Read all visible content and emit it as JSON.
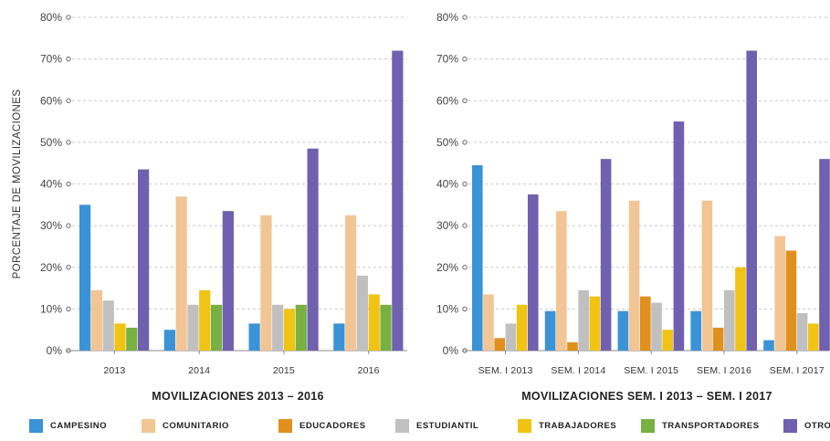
{
  "chart_data": [
    {
      "type": "bar",
      "title": "",
      "xlabel": "MOVILIZACIONES 2013 – 2016",
      "ylabel": "PORCENTAJE DE MOVILIZACIONES",
      "ylim": [
        0,
        80
      ],
      "yticks": [
        "0%",
        "10%",
        "20%",
        "30%",
        "40%",
        "50%",
        "60%",
        "70%",
        "80%"
      ],
      "grid": true,
      "categories": [
        "2013",
        "2014",
        "2015",
        "2016"
      ],
      "series": [
        {
          "name": "CAMPESINO",
          "values": [
            35,
            5,
            6.5,
            6.5
          ]
        },
        {
          "name": "COMUNITARIO",
          "values": [
            14.5,
            37,
            32.5,
            32.5
          ]
        },
        {
          "name": "ESTUDIANTIL",
          "values": [
            12,
            11,
            11,
            18
          ]
        },
        {
          "name": "TRABAJADORES",
          "values": [
            6.5,
            14.5,
            10,
            13.5
          ]
        },
        {
          "name": "TRANSPORTADORES",
          "values": [
            5.5,
            11,
            11,
            11
          ]
        },
        {
          "name": "OTRO",
          "values": [
            43.5,
            33.5,
            48.5,
            72
          ]
        }
      ]
    },
    {
      "type": "bar",
      "title": "",
      "xlabel": "MOVILIZACIONES SEM. I 2013 – SEM. I 2017",
      "ylabel": "",
      "ylim": [
        0,
        80
      ],
      "yticks": [
        "0%",
        "10%",
        "20%",
        "30%",
        "40%",
        "50%",
        "60%",
        "70%",
        "80%"
      ],
      "grid": true,
      "categories": [
        "SEM. I 2013",
        "SEM. I 2014",
        "SEM. I 2015",
        "SEM. I 2016",
        "SEM. I 2017"
      ],
      "series": [
        {
          "name": "CAMPESINO",
          "values": [
            44.5,
            9.5,
            9.5,
            9.5,
            2.5
          ]
        },
        {
          "name": "COMUNITARIO",
          "values": [
            13.5,
            33.5,
            36,
            36,
            27.5
          ]
        },
        {
          "name": "EDUCADORES",
          "values": [
            3,
            2,
            13,
            5.5,
            24
          ]
        },
        {
          "name": "ESTUDIANTIL",
          "values": [
            6.5,
            14.5,
            11.5,
            14.5,
            9
          ]
        },
        {
          "name": "TRABAJADORES",
          "values": [
            11,
            13,
            5,
            20,
            6.5
          ]
        },
        {
          "name": "OTRO",
          "values": [
            37.5,
            46,
            55,
            72,
            46
          ]
        }
      ]
    }
  ],
  "legend": [
    {
      "key": "CAMPESINO",
      "label": "CAMPESINO",
      "color": "#3a93d6"
    },
    {
      "key": "COMUNITARIO",
      "label": "COMUNITARIO",
      "color": "#f2c594"
    },
    {
      "key": "EDUCADORES",
      "label": "EDUCADORES",
      "color": "#e0901c"
    },
    {
      "key": "ESTUDIANTIL",
      "label": "ESTUDIANTIL",
      "color": "#c0c0c0"
    },
    {
      "key": "TRABAJADORES",
      "label": "TRABAJADORES",
      "color": "#f0c314"
    },
    {
      "key": "TRANSPORTADORES",
      "label": "TRANSPORTADORES",
      "color": "#78b042"
    },
    {
      "key": "OTRO",
      "label": "OTRO",
      "color": "#7060b0"
    }
  ]
}
